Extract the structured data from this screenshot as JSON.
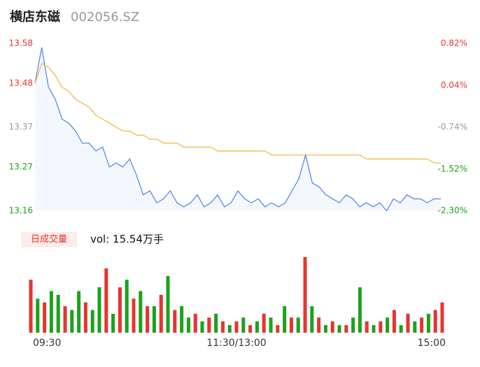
{
  "header": {
    "title": "横店东磁",
    "code": "002056.SZ"
  },
  "chart_data": [
    {
      "type": "line",
      "x": [
        0,
        4,
        8,
        12,
        16,
        20,
        24,
        28,
        32,
        36,
        40,
        44,
        48,
        52,
        56,
        60,
        64,
        68,
        72,
        76,
        80,
        84,
        88,
        92,
        96,
        100,
        104,
        108,
        112,
        116,
        120,
        124,
        128,
        132,
        136,
        140,
        144,
        148,
        152,
        156,
        160,
        164,
        168,
        172,
        176,
        180,
        184,
        188,
        192,
        196,
        200,
        204,
        208,
        212,
        216,
        220,
        224,
        228,
        232,
        236,
        240
      ],
      "xlim": [
        0,
        240
      ],
      "ylim": [
        13.16,
        13.58
      ],
      "yticks": [
        13.58,
        13.48,
        13.37,
        13.27,
        13.16
      ],
      "ytick_colors": [
        "#e8332f",
        "#e8332f",
        "#999999",
        "#1aa31a",
        "#1aa31a"
      ],
      "y2lim": [
        -2.3,
        0.82
      ],
      "y2ticks": [
        {
          "value": 0.82,
          "label": "0.82%"
        },
        {
          "value": 0.04,
          "label": "0.04%"
        },
        {
          "value": -0.74,
          "label": "-0.74%"
        },
        {
          "value": -1.52,
          "label": "-1.52%"
        },
        {
          "value": -2.3,
          "label": "-2.30%"
        }
      ],
      "y2tick_colors": [
        "#e8332f",
        "#e8332f",
        "#999999",
        "#1aa31a",
        "#1aa31a"
      ],
      "series": [
        {
          "color": "#4a80e8",
          "area": true,
          "values": [
            13.48,
            13.57,
            13.47,
            13.44,
            13.39,
            13.38,
            13.36,
            13.33,
            13.33,
            13.31,
            13.32,
            13.27,
            13.28,
            13.27,
            13.29,
            13.25,
            13.2,
            13.21,
            13.18,
            13.19,
            13.21,
            13.18,
            13.17,
            13.18,
            13.2,
            13.17,
            13.18,
            13.2,
            13.17,
            13.18,
            13.21,
            13.19,
            13.18,
            13.19,
            13.17,
            13.18,
            13.17,
            13.18,
            13.21,
            13.24,
            13.3,
            13.23,
            13.22,
            13.2,
            13.19,
            13.18,
            13.2,
            13.19,
            13.17,
            13.18,
            13.17,
            13.18,
            13.16,
            13.19,
            13.18,
            13.2,
            13.19,
            13.19,
            13.18,
            13.19,
            13.19
          ]
        },
        {
          "color": "#f0b43c",
          "values": [
            13.48,
            13.53,
            13.52,
            13.5,
            13.47,
            13.46,
            13.44,
            13.43,
            13.42,
            13.4,
            13.39,
            13.38,
            13.37,
            13.36,
            13.36,
            13.35,
            13.35,
            13.34,
            13.34,
            13.33,
            13.33,
            13.33,
            13.32,
            13.32,
            13.32,
            13.32,
            13.32,
            13.31,
            13.31,
            13.31,
            13.31,
            13.31,
            13.31,
            13.31,
            13.31,
            13.3,
            13.3,
            13.3,
            13.3,
            13.3,
            13.3,
            13.3,
            13.3,
            13.3,
            13.3,
            13.3,
            13.3,
            13.3,
            13.3,
            13.29,
            13.29,
            13.29,
            13.29,
            13.29,
            13.29,
            13.29,
            13.29,
            13.29,
            13.29,
            13.28,
            13.28
          ]
        }
      ]
    },
    {
      "type": "bar",
      "label": "日成交量",
      "vol_text": "vol: 15.54万手",
      "x": [
        0,
        4,
        8,
        12,
        16,
        20,
        24,
        28,
        32,
        36,
        40,
        44,
        48,
        52,
        56,
        60,
        64,
        68,
        72,
        76,
        80,
        84,
        88,
        92,
        96,
        100,
        104,
        108,
        112,
        116,
        120,
        124,
        128,
        132,
        136,
        140,
        144,
        148,
        152,
        156,
        160,
        164,
        168,
        172,
        176,
        180,
        184,
        188,
        192,
        196,
        200,
        204,
        208,
        212,
        216,
        220,
        224,
        228,
        232,
        236,
        240
      ],
      "xlim": [
        0,
        240
      ],
      "xticks": [
        {
          "value": 0,
          "label": "09:30"
        },
        {
          "value": 120,
          "label": "11:30/13:00"
        },
        {
          "value": 240,
          "label": "15:00"
        }
      ],
      "ylim": [
        0,
        100
      ],
      "values": [
        70,
        45,
        40,
        55,
        50,
        35,
        30,
        55,
        40,
        30,
        60,
        85,
        25,
        60,
        70,
        45,
        55,
        35,
        35,
        50,
        75,
        30,
        35,
        20,
        25,
        15,
        20,
        25,
        15,
        10,
        15,
        20,
        10,
        15,
        25,
        20,
        10,
        35,
        20,
        20,
        100,
        35,
        20,
        10,
        15,
        10,
        10,
        20,
        60,
        15,
        10,
        15,
        20,
        30,
        10,
        25,
        15,
        20,
        25,
        30,
        40
      ],
      "colors": [
        "#e8332f",
        "#1aa31a",
        "#e8332f",
        "#1aa31a",
        "#1aa31a",
        "#e8332f",
        "#1aa31a",
        "#1aa31a",
        "#e8332f",
        "#1aa31a",
        "#1aa31a",
        "#e8332f",
        "#1aa31a",
        "#e8332f",
        "#1aa31a",
        "#e8332f",
        "#1aa31a",
        "#e8332f",
        "#1aa31a",
        "#e8332f",
        "#1aa31a",
        "#e8332f",
        "#1aa31a",
        "#1aa31a",
        "#e8332f",
        "#1aa31a",
        "#e8332f",
        "#1aa31a",
        "#e8332f",
        "#1aa31a",
        "#e8332f",
        "#1aa31a",
        "#e8332f",
        "#1aa31a",
        "#e8332f",
        "#1aa31a",
        "#e8332f",
        "#1aa31a",
        "#e8332f",
        "#1aa31a",
        "#e8332f",
        "#1aa31a",
        "#e8332f",
        "#1aa31a",
        "#e8332f",
        "#1aa31a",
        "#e8332f",
        "#1aa31a",
        "#1aa31a",
        "#e8332f",
        "#1aa31a",
        "#e8332f",
        "#1aa31a",
        "#e8332f",
        "#1aa31a",
        "#e8332f",
        "#1aa31a",
        "#e8332f",
        "#1aa31a",
        "#e8332f",
        "#e8332f"
      ]
    }
  ]
}
